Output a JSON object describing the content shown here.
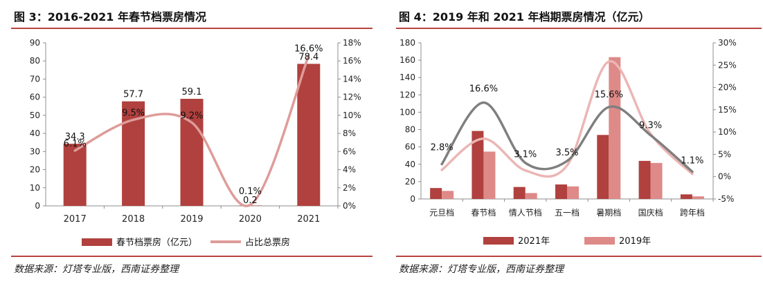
{
  "figures": [
    {
      "title": "图 3：2016-2021 年春节档票房情况",
      "source": "数据来源：灯塔专业版，西南证券整理",
      "colors": {
        "bar": "#b0413e",
        "line": "#de9c9a",
        "rule": "#b8433e"
      }
    },
    {
      "title": "图 4：2019 年和 2021 年档期票房情况（亿元）",
      "source": "数据来源：灯塔专业版，西南证券整理",
      "colors": {
        "bar2021": "#b0413e",
        "bar2019": "#de8a88",
        "line2021": "#7f7f7f",
        "line2019": "#ebb6b4",
        "rule": "#b8433e"
      }
    }
  ],
  "chart_data": [
    {
      "type": "bar",
      "categories": [
        "2017",
        "2018",
        "2019",
        "2020",
        "2021"
      ],
      "series": [
        {
          "name": "春节档票房（亿元）",
          "type": "bar",
          "axis": "left",
          "values": [
            34.3,
            57.7,
            59.1,
            0.2,
            78.4
          ],
          "labels": [
            "34.3",
            "57.7",
            "59.1",
            "0.2",
            "78.4"
          ]
        },
        {
          "name": "占比总票房",
          "type": "line",
          "axis": "right",
          "values": [
            6.1,
            9.5,
            9.2,
            0.1,
            16.6
          ],
          "labels": [
            "6.1%",
            "9.5%",
            "9.2%",
            "0.1%",
            "16.6%"
          ]
        }
      ],
      "yaxis_left": {
        "min": 0,
        "max": 90,
        "step": 10,
        "ticks": [
          "0",
          "10",
          "20",
          "30",
          "40",
          "50",
          "60",
          "70",
          "80",
          "90"
        ]
      },
      "yaxis_right": {
        "min": 0,
        "max": 18,
        "step": 2,
        "ticks": [
          "0%",
          "2%",
          "4%",
          "6%",
          "8%",
          "10%",
          "12%",
          "14%",
          "16%",
          "18%"
        ]
      },
      "legend_position": "bottom",
      "grid": false
    },
    {
      "type": "bar",
      "categories": [
        "元旦档",
        "春节档",
        "情人节档",
        "五一档",
        "暑期档",
        "国庆档",
        "跨年档"
      ],
      "series": [
        {
          "name": "2021年",
          "type": "bar",
          "axis": "left",
          "values": [
            12.6,
            78.4,
            13.8,
            16.7,
            73.8,
            43.9,
            5.3
          ]
        },
        {
          "name": "2019年",
          "type": "bar",
          "axis": "left",
          "values": [
            9.3,
            54.6,
            6.8,
            14.5,
            163.5,
            41.5,
            3.0
          ]
        },
        {
          "name": "2021年",
          "type": "line",
          "axis": "right",
          "values": [
            2.8,
            16.6,
            3.1,
            3.5,
            15.6,
            9.3,
            1.1
          ],
          "labels": [
            "2.8%",
            "16.6%",
            "3.1%",
            "3.5%",
            "15.6%",
            "9.3%",
            "1.1%"
          ]
        },
        {
          "name": "2019年",
          "type": "line",
          "axis": "right",
          "values": [
            1.5,
            8.5,
            1.4,
            2.5,
            25.8,
            9.6,
            0.6
          ]
        }
      ],
      "yaxis_left": {
        "min": 0,
        "max": 180,
        "step": 20,
        "ticks": [
          "0",
          "20",
          "40",
          "60",
          "80",
          "100",
          "120",
          "140",
          "160",
          "180"
        ]
      },
      "yaxis_right": {
        "min": -5,
        "max": 30,
        "step": 5,
        "ticks": [
          "-5%",
          "0%",
          "5%",
          "10%",
          "15%",
          "20%",
          "25%",
          "30%"
        ]
      },
      "legend_position": "bottom",
      "grid": false
    }
  ]
}
